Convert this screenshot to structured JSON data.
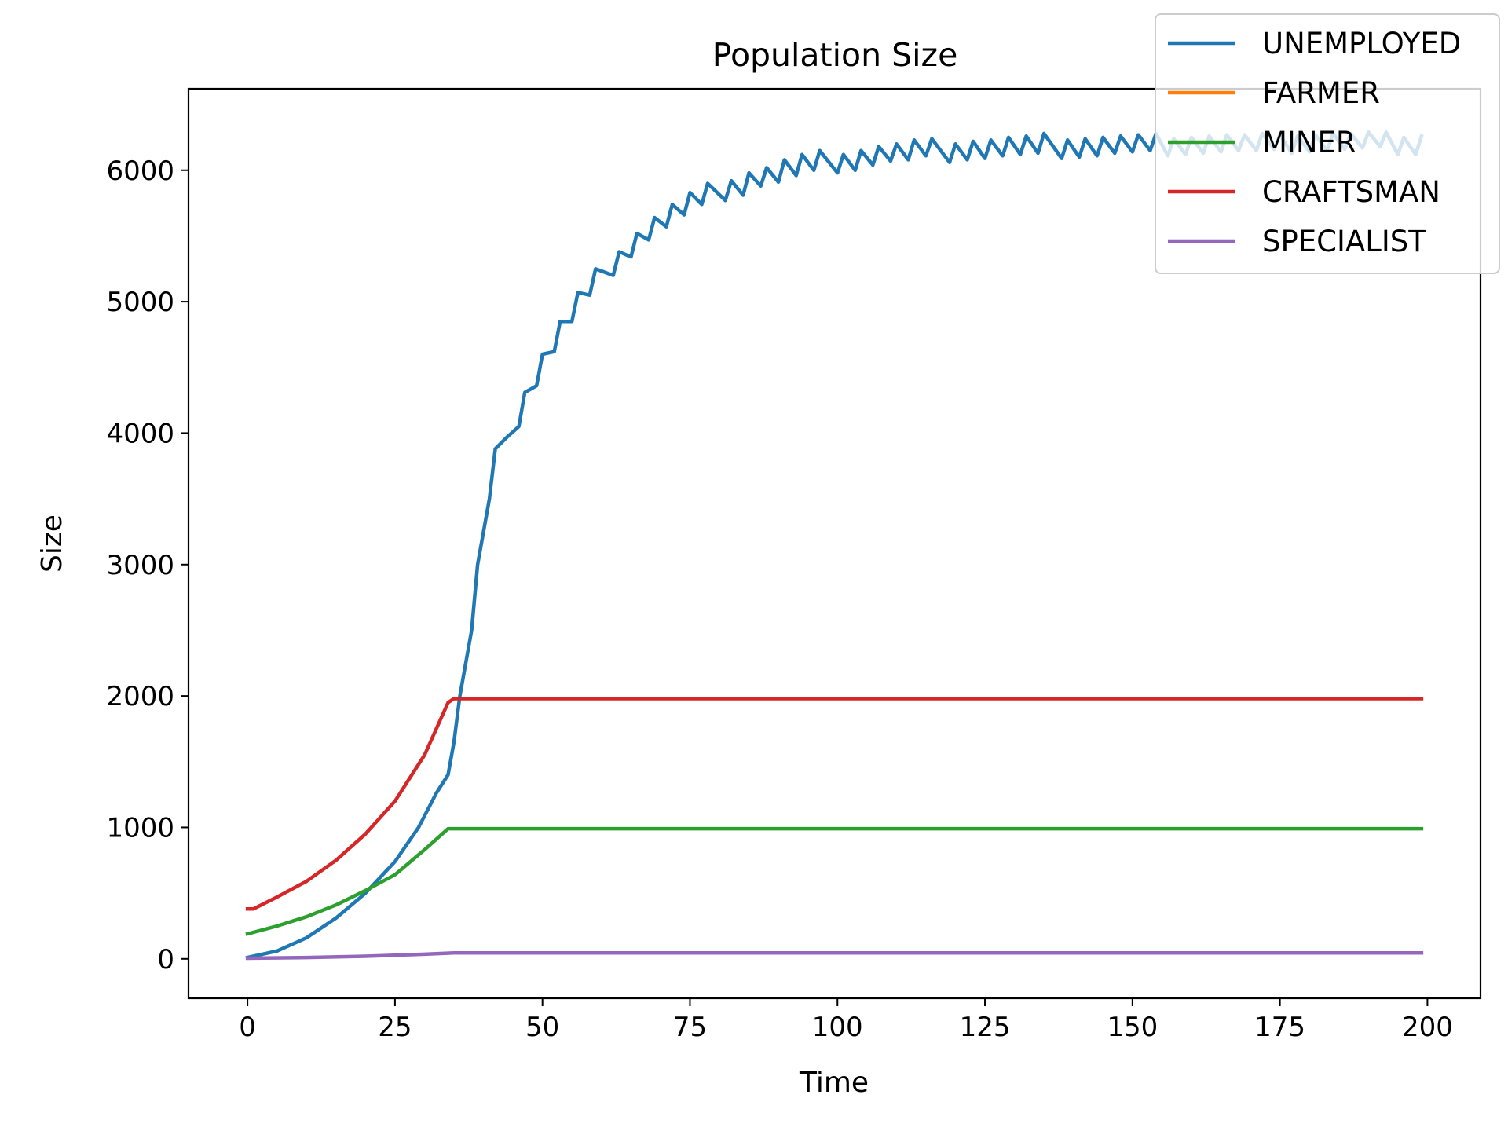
{
  "chart_data": {
    "type": "line",
    "title": "Population Size",
    "xlabel": "Time",
    "ylabel": "Size",
    "xlim": [
      -10,
      209
    ],
    "ylim": [
      -300,
      6620
    ],
    "xticks": [
      0,
      25,
      50,
      75,
      100,
      125,
      150,
      175,
      200
    ],
    "yticks": [
      0,
      1000,
      2000,
      3000,
      4000,
      5000,
      6000
    ],
    "grid": false,
    "legend_placement": "upper-right",
    "series": [
      {
        "name": "UNEMPLOYED",
        "color": "#1f77b4",
        "points": [
          [
            0,
            10
          ],
          [
            5,
            60
          ],
          [
            10,
            160
          ],
          [
            15,
            310
          ],
          [
            20,
            500
          ],
          [
            25,
            740
          ],
          [
            29,
            1000
          ],
          [
            32,
            1260
          ],
          [
            34,
            1400
          ],
          [
            35,
            1650
          ],
          [
            36,
            2000
          ],
          [
            38,
            2500
          ],
          [
            39,
            3000
          ],
          [
            41,
            3500
          ],
          [
            42,
            3880
          ],
          [
            44,
            3970
          ],
          [
            46,
            4050
          ],
          [
            47,
            4310
          ],
          [
            49,
            4360
          ],
          [
            50,
            4600
          ],
          [
            52,
            4620
          ],
          [
            53,
            4850
          ],
          [
            55,
            4850
          ],
          [
            56,
            5070
          ],
          [
            58,
            5050
          ],
          [
            59,
            5250
          ],
          [
            62,
            5200
          ],
          [
            63,
            5380
          ],
          [
            65,
            5340
          ],
          [
            66,
            5520
          ],
          [
            68,
            5470
          ],
          [
            69,
            5640
          ],
          [
            71,
            5570
          ],
          [
            72,
            5740
          ],
          [
            74,
            5660
          ],
          [
            75,
            5830
          ],
          [
            77,
            5740
          ],
          [
            78,
            5900
          ],
          [
            81,
            5770
          ],
          [
            82,
            5920
          ],
          [
            84,
            5810
          ],
          [
            85,
            5980
          ],
          [
            87,
            5880
          ],
          [
            88,
            6020
          ],
          [
            90,
            5910
          ],
          [
            91,
            6080
          ],
          [
            93,
            5960
          ],
          [
            94,
            6120
          ],
          [
            96,
            6000
          ],
          [
            97,
            6150
          ],
          [
            100,
            5980
          ],
          [
            101,
            6120
          ],
          [
            103,
            6000
          ],
          [
            104,
            6150
          ],
          [
            106,
            6040
          ],
          [
            107,
            6180
          ],
          [
            109,
            6070
          ],
          [
            110,
            6200
          ],
          [
            112,
            6080
          ],
          [
            113,
            6230
          ],
          [
            115,
            6110
          ],
          [
            116,
            6240
          ],
          [
            119,
            6060
          ],
          [
            120,
            6200
          ],
          [
            122,
            6080
          ],
          [
            123,
            6220
          ],
          [
            125,
            6090
          ],
          [
            126,
            6230
          ],
          [
            128,
            6110
          ],
          [
            129,
            6250
          ],
          [
            131,
            6120
          ],
          [
            132,
            6260
          ],
          [
            134,
            6130
          ],
          [
            135,
            6280
          ],
          [
            138,
            6090
          ],
          [
            139,
            6230
          ],
          [
            141,
            6100
          ],
          [
            142,
            6240
          ],
          [
            144,
            6110
          ],
          [
            145,
            6250
          ],
          [
            147,
            6130
          ],
          [
            148,
            6260
          ],
          [
            150,
            6140
          ],
          [
            151,
            6270
          ],
          [
            153,
            6150
          ],
          [
            154,
            6280
          ],
          [
            156,
            6110
          ],
          [
            157,
            6240
          ],
          [
            159,
            6120
          ],
          [
            160,
            6250
          ],
          [
            162,
            6130
          ],
          [
            163,
            6260
          ],
          [
            165,
            6140
          ],
          [
            166,
            6270
          ],
          [
            168,
            6150
          ],
          [
            169,
            6270
          ],
          [
            171,
            6150
          ],
          [
            172,
            6280
          ],
          [
            174,
            6160
          ],
          [
            175,
            6270
          ],
          [
            177,
            6130
          ],
          [
            178,
            6260
          ],
          [
            180,
            6140
          ],
          [
            181,
            6270
          ],
          [
            183,
            6150
          ],
          [
            184,
            6280
          ],
          [
            186,
            6160
          ],
          [
            187,
            6280
          ],
          [
            189,
            6170
          ],
          [
            190,
            6290
          ],
          [
            192,
            6180
          ],
          [
            193,
            6290
          ],
          [
            195,
            6120
          ],
          [
            196,
            6250
          ],
          [
            198,
            6120
          ],
          [
            199,
            6260
          ]
        ]
      },
      {
        "name": "FARMER",
        "color": "#ff7f0e",
        "points": []
      },
      {
        "name": "MINER",
        "color": "#2ca02c",
        "points": [
          [
            0,
            190
          ],
          [
            5,
            250
          ],
          [
            10,
            320
          ],
          [
            15,
            410
          ],
          [
            20,
            520
          ],
          [
            25,
            640
          ],
          [
            30,
            830
          ],
          [
            34,
            990
          ],
          [
            199,
            990
          ]
        ]
      },
      {
        "name": "CRAFTSMAN",
        "color": "#d62728",
        "points": [
          [
            0,
            380
          ],
          [
            1,
            380
          ],
          [
            5,
            470
          ],
          [
            10,
            590
          ],
          [
            15,
            750
          ],
          [
            20,
            950
          ],
          [
            25,
            1200
          ],
          [
            30,
            1550
          ],
          [
            34,
            1950
          ],
          [
            35,
            1980
          ],
          [
            199,
            1980
          ]
        ]
      },
      {
        "name": "SPECIALIST",
        "color": "#9467bd",
        "points": [
          [
            0,
            5
          ],
          [
            10,
            10
          ],
          [
            20,
            20
          ],
          [
            30,
            35
          ],
          [
            35,
            45
          ],
          [
            199,
            45
          ]
        ]
      }
    ]
  }
}
